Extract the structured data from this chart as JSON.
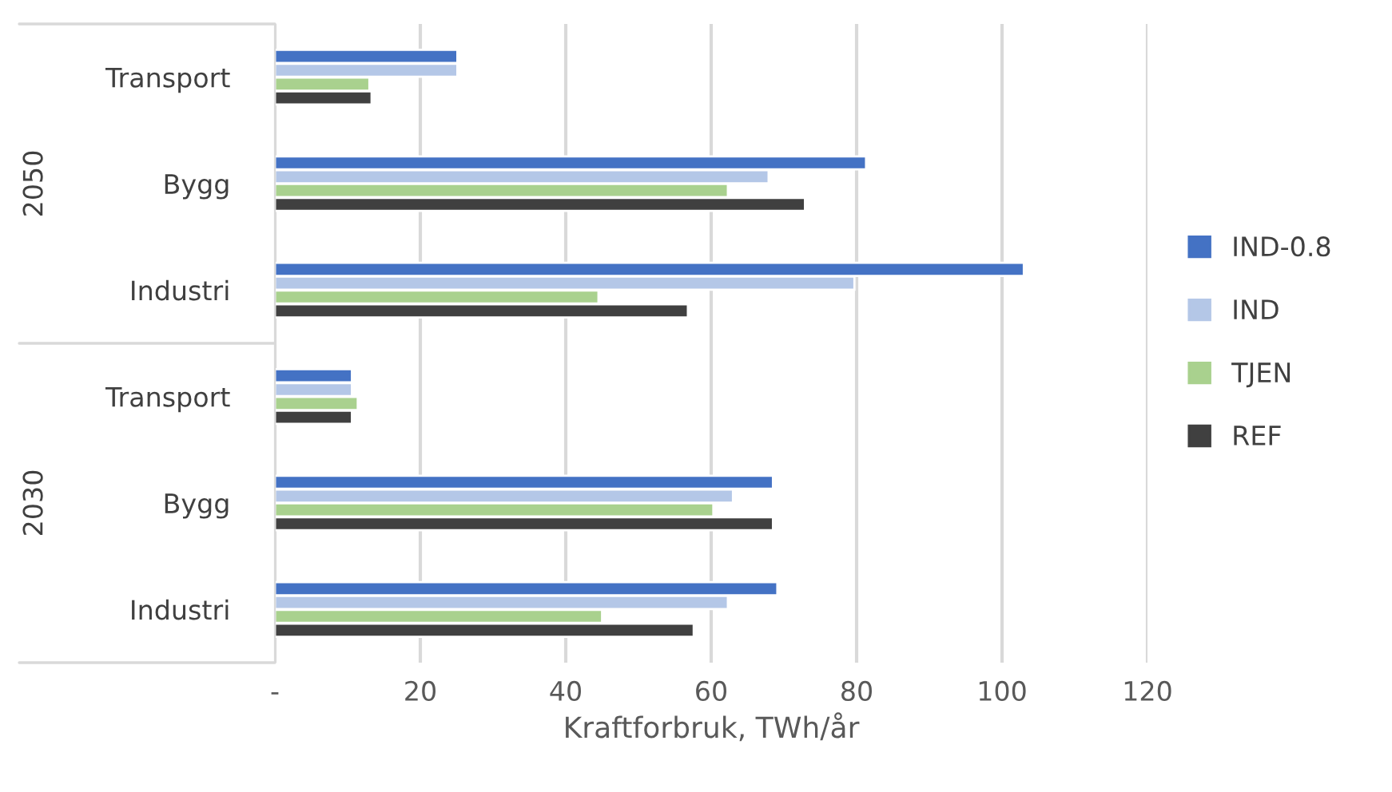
{
  "chart_data": {
    "type": "bar",
    "orientation": "horizontal",
    "xlabel": "Kraftforbruk, TWh/år",
    "categories": [
      "Transport",
      "Bygg",
      "Industri",
      "Transport",
      "Bygg",
      "Industri"
    ],
    "series": [
      {
        "name": "IND-0.8",
        "color": "#4472c4",
        "values": [
          25.1,
          81.3,
          103,
          10.6,
          68.5,
          69.1
        ]
      },
      {
        "name": "IND",
        "color": "#b4c7e7",
        "values": [
          25.1,
          67.9,
          79.7,
          10.6,
          63.0,
          62.3
        ]
      },
      {
        "name": "TJEN",
        "color": "#a9d18e",
        "values": [
          13.0,
          62.3,
          44.5,
          11.4,
          60.3,
          45.0
        ]
      },
      {
        "name": "REF",
        "color": "#404040",
        "values": [
          13.3,
          72.9,
          56.8,
          10.6,
          68.5,
          57.6
        ]
      }
    ],
    "annotations": [
      "2050",
      "2030"
    ],
    "xlim": [
      0,
      120
    ],
    "xticks": [
      {
        "value": 0,
        "label": "-"
      },
      20,
      40,
      60,
      80,
      100,
      120
    ],
    "grid": "x",
    "legend": "right"
  }
}
